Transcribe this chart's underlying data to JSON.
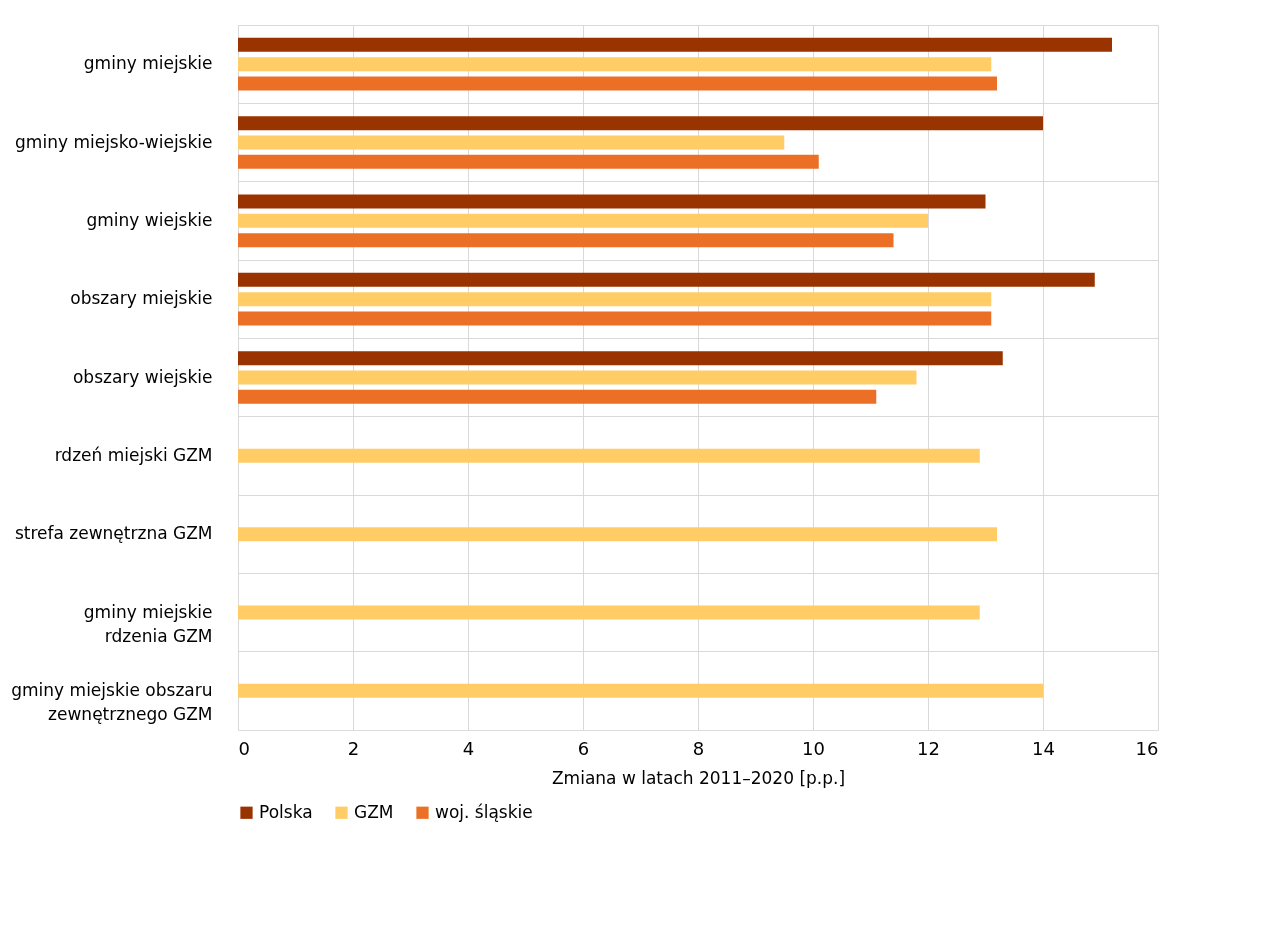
{
  "chart_data": {
    "type": "bar",
    "orientation": "horizontal",
    "xlabel": "Zmiana w latach 2011–2020 [p.p.]",
    "categories": [
      "gminy miejskie",
      "gminy miejsko-wiejskie",
      "gminy wiejskie",
      "obszary miejskie",
      "obszary wiejskie",
      "rdzeń miejski GZM",
      "strefa zewnętrzna GZM",
      "gminy miejskie\nrdzenia GZM",
      "gminy miejskie obszaru\nzewnętrznego GZM"
    ],
    "series": [
      {
        "name": "Polska",
        "color": "#993300",
        "values": [
          15.2,
          14.0,
          13.0,
          14.9,
          13.3,
          null,
          null,
          null,
          null
        ]
      },
      {
        "name": "GZM",
        "color": "#ffcc66",
        "values": [
          13.1,
          9.5,
          12.0,
          13.1,
          11.8,
          12.9,
          13.2,
          12.9,
          14.0
        ]
      },
      {
        "name": "woj. śląskie",
        "color": "#eb7026",
        "values": [
          13.2,
          10.1,
          11.4,
          13.1,
          11.1,
          null,
          null,
          null,
          null
        ]
      }
    ],
    "xlim": [
      0,
      16
    ],
    "xticks": [
      0,
      2,
      4,
      6,
      8,
      10,
      12,
      14,
      16
    ],
    "grid": true,
    "legend": "bottom"
  }
}
